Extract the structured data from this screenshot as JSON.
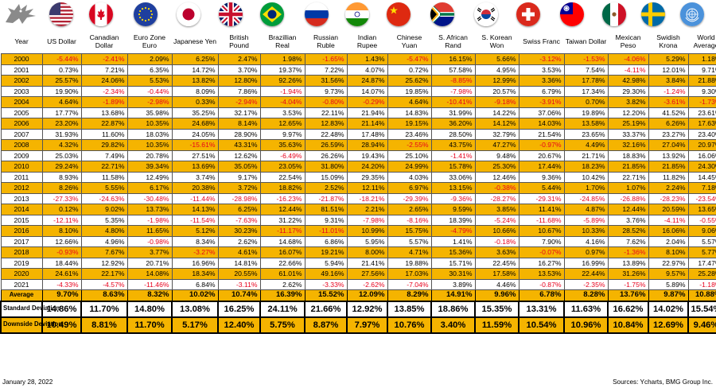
{
  "columns": [
    {
      "label": "Year",
      "flag": null
    },
    {
      "label": "US Dollar",
      "flag": "us-flag"
    },
    {
      "label": "Canadian Dollar",
      "flag": "canada-flag"
    },
    {
      "label": "Euro Zone Euro",
      "flag": "eu-flag"
    },
    {
      "label": "Japanese Yen",
      "flag": "japan-flag"
    },
    {
      "label": "British Pound",
      "flag": "uk-flag"
    },
    {
      "label": "Brazillian Real",
      "flag": "brazil-flag"
    },
    {
      "label": "Russian Ruble",
      "flag": "russia-flag"
    },
    {
      "label": "Indian Rupee",
      "flag": "india-flag"
    },
    {
      "label": "Chinese Yuan",
      "flag": "china-flag"
    },
    {
      "label": "S. African Rand",
      "flag": "south-africa-flag"
    },
    {
      "label": "S. Korean Won",
      "flag": "south-korea-flag"
    },
    {
      "label": "Swiss Franc",
      "flag": "switzerland-flag"
    },
    {
      "label": "Taiwan Dollar",
      "flag": "taiwan-flag"
    },
    {
      "label": "Mexican Peso",
      "flag": "mexico-flag"
    },
    {
      "label": "Swidish Krona",
      "flag": "sweden-flag"
    },
    {
      "label": "World Average",
      "flag": "un-flag"
    }
  ],
  "rows": [
    [
      "2000",
      "-5.44%",
      "-2.41%",
      "2.09%",
      "6.25%",
      "2.47%",
      "1.98%",
      "-1.65%",
      "1.43%",
      "-5.47%",
      "16.15%",
      "5.66%",
      "-3.12%",
      "-1.53%",
      "-4.06%",
      "5.29%",
      "1.18%"
    ],
    [
      "2001",
      "0.73%",
      "7.21%",
      "6.35%",
      "14.72%",
      "3.70%",
      "19.37%",
      "7.22%",
      "4.07%",
      "0.72%",
      "57.58%",
      "4.95%",
      "3.53%",
      "7.54%",
      "-4.11%",
      "12.01%",
      "9.71%"
    ],
    [
      "2002",
      "25.57%",
      "24.06%",
      "5.53%",
      "13.82%",
      "12.80%",
      "92.26%",
      "31.56%",
      "24.87%",
      "25.62%",
      "-8.85%",
      "12.99%",
      "3.36%",
      "17.78%",
      "42.98%",
      "3.84%",
      "21.88%"
    ],
    [
      "2003",
      "19.90%",
      "-2.34%",
      "-0.44%",
      "8.09%",
      "7.86%",
      "-1.94%",
      "9.73%",
      "14.07%",
      "19.85%",
      "-7.98%",
      "20.57%",
      "6.79%",
      "17.34%",
      "29.30%",
      "-1.24%",
      "9.30%"
    ],
    [
      "2004",
      "4.64%",
      "-1.89%",
      "-2.98%",
      "0.33%",
      "-2.94%",
      "-4.04%",
      "-0.80%",
      "-0.29%",
      "4.64%",
      "-10.41%",
      "-9.18%",
      "-3.91%",
      "0.70%",
      "3.82%",
      "-3.61%",
      "-1.73%"
    ],
    [
      "2005",
      "17.77%",
      "13.68%",
      "35.98%",
      "35.25%",
      "32.17%",
      "3.53%",
      "22.11%",
      "21.94%",
      "14.83%",
      "31.99%",
      "14.22%",
      "37.06%",
      "19.89%",
      "12.20%",
      "41.52%",
      "23.61%"
    ],
    [
      "2006",
      "23.20%",
      "22.87%",
      "10.35%",
      "24.68%",
      "8.14%",
      "12.65%",
      "12.83%",
      "21.14%",
      "19.15%",
      "36.20%",
      "14.12%",
      "14.03%",
      "13.58%",
      "25.19%",
      "6.26%",
      "17.63%"
    ],
    [
      "2007",
      "31.93%",
      "11.60%",
      "18.03%",
      "24.05%",
      "28.90%",
      "9.97%",
      "22.48%",
      "17.48%",
      "23.46%",
      "28.50%",
      "32.79%",
      "21.54%",
      "23.65%",
      "33.37%",
      "23.27%",
      "23.40%"
    ],
    [
      "2008",
      "4.32%",
      "29.82%",
      "10.35%",
      "-15.61%",
      "43.31%",
      "35.63%",
      "26.59%",
      "28.94%",
      "-2.55%",
      "43.75%",
      "47.27%",
      "-0.97%",
      "4.49%",
      "32.16%",
      "27.04%",
      "20.97%"
    ],
    [
      "2009",
      "25.03%",
      "7.49%",
      "20.78%",
      "27.51%",
      "12.62%",
      "-6.49%",
      "26.26%",
      "19.43%",
      "25.10%",
      "-1.41%",
      "9.48%",
      "20.67%",
      "21.71%",
      "18.83%",
      "13.92%",
      "16.06%"
    ],
    [
      "2010",
      "29.24%",
      "22.71%",
      "39.34%",
      "13.69%",
      "35.05%",
      "23.05%",
      "31.80%",
      "24.20%",
      "24.99%",
      "15.78%",
      "25.30%",
      "17.44%",
      "18.23%",
      "21.85%",
      "21.85%",
      "24.30%"
    ],
    [
      "2011",
      "8.93%",
      "11.58%",
      "12.49%",
      "3.74%",
      "9.17%",
      "22.54%",
      "15.09%",
      "29.35%",
      "4.03%",
      "33.06%",
      "12.46%",
      "9.36%",
      "10.42%",
      "22.71%",
      "11.82%",
      "14.45%"
    ],
    [
      "2012",
      "8.26%",
      "5.55%",
      "6.17%",
      "20.38%",
      "3.72%",
      "18.82%",
      "2.52%",
      "12.11%",
      "6.97%",
      "13.15%",
      "-0.38%",
      "5.44%",
      "1.70%",
      "1.07%",
      "2.24%",
      "7.18%"
    ],
    [
      "2013",
      "-27.33%",
      "-24.63%",
      "-30.48%",
      "-11.44%",
      "-28.98%",
      "-16.23%",
      "-21.87%",
      "-18.21%",
      "-29.39%",
      "-9.36%",
      "-28.27%",
      "-29.31%",
      "-24.85%",
      "-26.88%",
      "-28.23%",
      "-23.54%"
    ],
    [
      "2014",
      "0.12%",
      "9.02%",
      "13.73%",
      "14.13%",
      "6.25%",
      "12.44%",
      "81.51%",
      "2.21%",
      "2.65%",
      "9.59%",
      "3.85%",
      "11.41%",
      "4.87%",
      "12.44%",
      "20.59%",
      "13.65%"
    ],
    [
      "2015",
      "-12.11%",
      "5.35%",
      "-1.98%",
      "-11.54%",
      "-7.63%",
      "31.22%",
      "9.31%",
      "-7.98%",
      "-8.16%",
      "18.39%",
      "-5.24%",
      "-11.68%",
      "-5.89%",
      "3.76%",
      "-4.11%",
      "-0.55%"
    ],
    [
      "2016",
      "8.10%",
      "4.80%",
      "11.65%",
      "5.12%",
      "30.23%",
      "-11.17%",
      "-11.01%",
      "10.99%",
      "15.75%",
      "-4.79%",
      "10.66%",
      "10.67%",
      "10.33%",
      "28.52%",
      "16.06%",
      "9.06%"
    ],
    [
      "2017",
      "12.66%",
      "4.96%",
      "-0.98%",
      "8.34%",
      "2.62%",
      "14.68%",
      "6.86%",
      "5.95%",
      "5.57%",
      "1.41%",
      "-0.18%",
      "7.90%",
      "4.16%",
      "7.62%",
      "2.04%",
      "5.57%"
    ],
    [
      "2018",
      "-0.93%",
      "7.67%",
      "3.77%",
      "-3.27%",
      "4.61%",
      "16.07%",
      "19.21%",
      "8.00%",
      "4.71%",
      "15.36%",
      "3.63%",
      "-0.07%",
      "0.97%",
      "-1.36%",
      "8.10%",
      "5.77%"
    ],
    [
      "2019",
      "18.44%",
      "12.92%",
      "20.71%",
      "16.96%",
      "14.81%",
      "22.66%",
      "5.94%",
      "21.41%",
      "19.88%",
      "15.71%",
      "22.45%",
      "16.27%",
      "16.99%",
      "13.89%",
      "22.97%",
      "17.47%"
    ],
    [
      "2020",
      "24.61%",
      "22.17%",
      "14.08%",
      "18.34%",
      "20.55%",
      "61.01%",
      "49.16%",
      "27.56%",
      "17.03%",
      "30.31%",
      "17.58%",
      "13.53%",
      "22.44%",
      "31.26%",
      "9.57%",
      "25.28%"
    ],
    [
      "2021",
      "-4.33%",
      "-4.57%",
      "-11.46%",
      "6.84%",
      "-3.11%",
      "2.62%",
      "-3.33%",
      "-2.62%",
      "-7.04%",
      "3.89%",
      "4.46%",
      "-0.87%",
      "-2.35%",
      "-1.75%",
      "5.89%",
      "-1.18%"
    ]
  ],
  "average": [
    "Average",
    "9.70%",
    "8.63%",
    "8.32%",
    "10.02%",
    "10.74%",
    "16.39%",
    "15.52%",
    "12.09%",
    "8.29%",
    "14.91%",
    "9.96%",
    "6.78%",
    "8.28%",
    "13.76%",
    "9.87%",
    "10.88%"
  ],
  "std_dev": [
    "Standard Deviation",
    "14.86%",
    "11.70%",
    "14.80%",
    "13.08%",
    "16.25%",
    "24.11%",
    "21.66%",
    "12.92%",
    "13.85%",
    "18.86%",
    "15.35%",
    "13.31%",
    "11.63%",
    "16.62%",
    "14.02%",
    "15.54%"
  ],
  "downside_dev": [
    "Downside Deviation",
    "10.49%",
    "8.81%",
    "11.70%",
    "5.17%",
    "12.40%",
    "5.75%",
    "8.87%",
    "7.97%",
    "10.76%",
    "3.40%",
    "11.59%",
    "10.54%",
    "10.96%",
    "10.84%",
    "12.69%",
    "9.46%"
  ],
  "footer": {
    "date": "January 28, 2022",
    "source": "Sources: Ycharts, BMG Group Inc."
  },
  "colors": {
    "highlight": "#f5b400",
    "negative": "#e8001c"
  }
}
